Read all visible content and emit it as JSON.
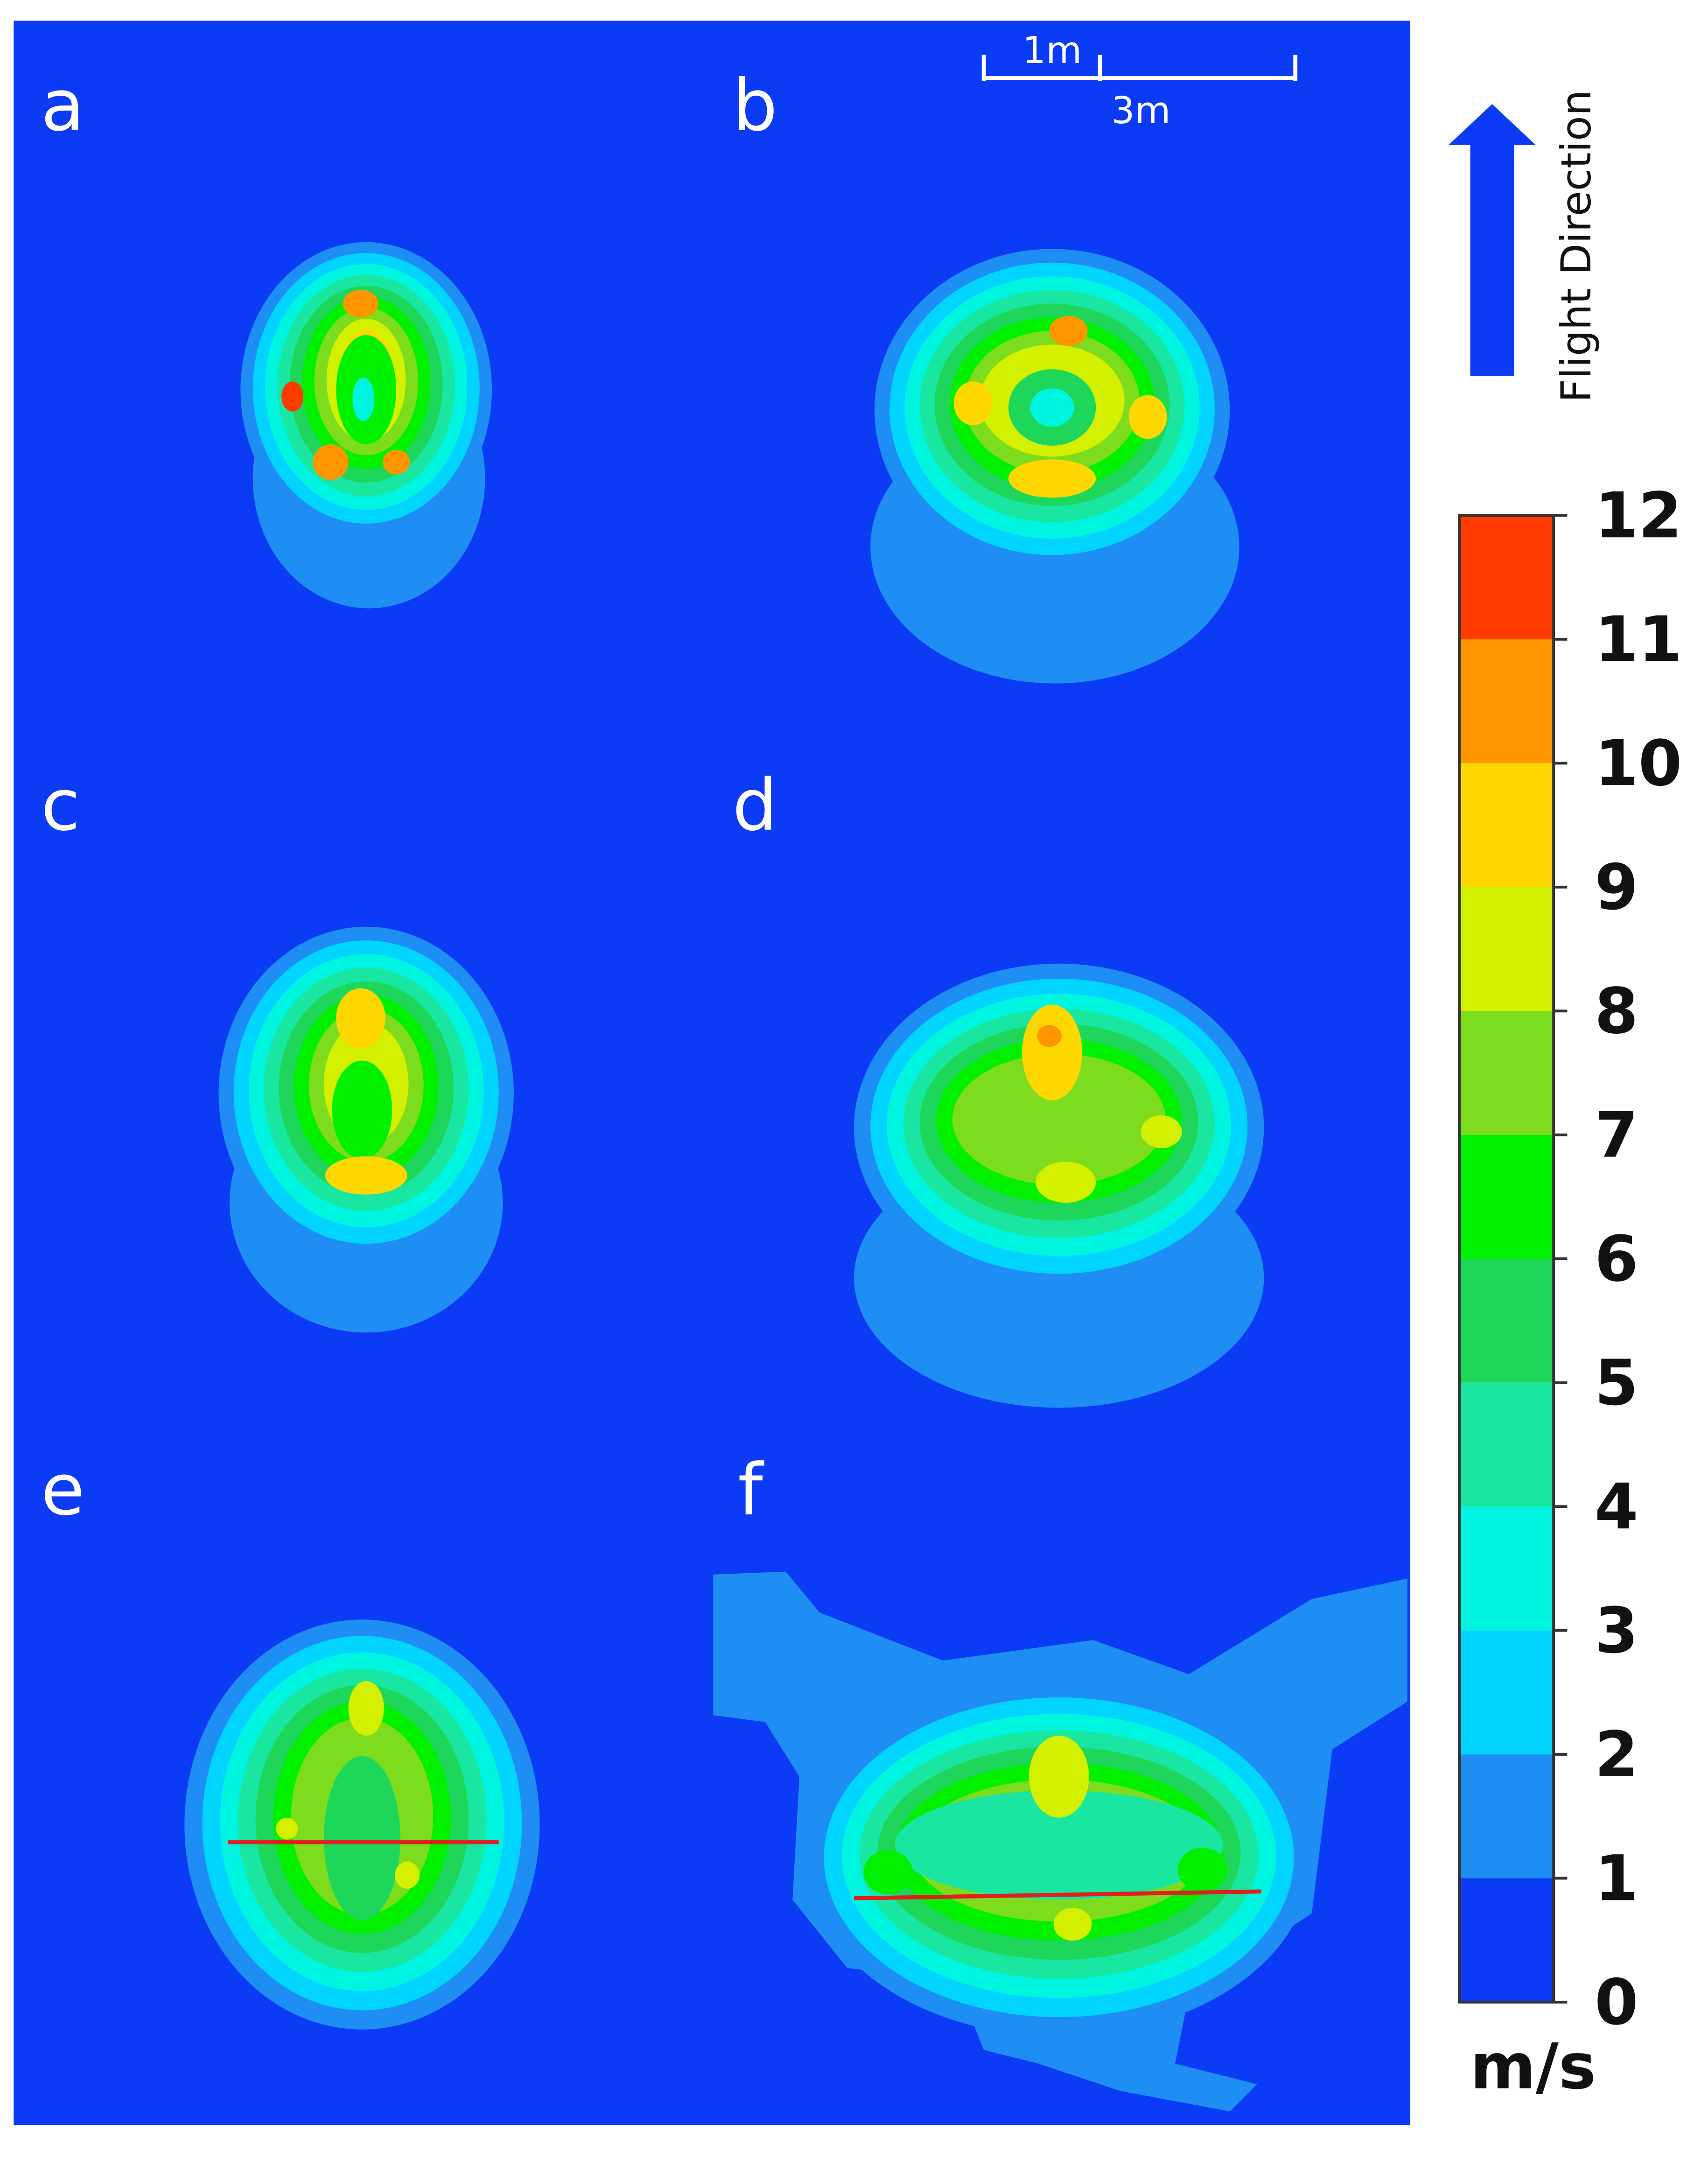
{
  "panels": [
    "a",
    "b",
    "c",
    "d",
    "e",
    "f"
  ],
  "scale_bar": {
    "short": "1m",
    "long": "3m"
  },
  "flight_direction": "Flight Direction",
  "colorbar": {
    "ticks": [
      0,
      1,
      2,
      3,
      4,
      5,
      6,
      7,
      8,
      9,
      10,
      11,
      12
    ],
    "colors": [
      "#0c3bf5",
      "#1e8ef5",
      "#00d4ff",
      "#00f5e0",
      "#19e6a0",
      "#1ed75a",
      "#00f000",
      "#7ddc1e",
      "#d2f000",
      "#ffd700",
      "#ff9600",
      "#ff3c00"
    ],
    "unit": "m/s"
  }
}
